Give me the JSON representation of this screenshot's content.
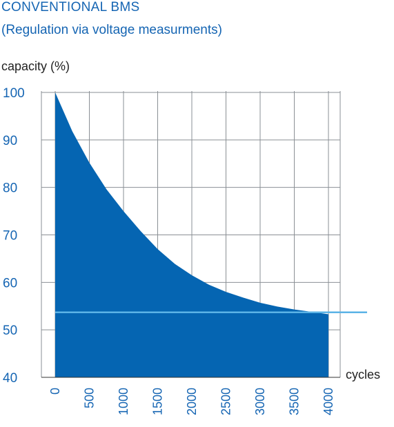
{
  "chart_data": {
    "type": "area",
    "title": "CONVENTIONAL BMS",
    "subtitle": "(Regulation via voltage measurments)",
    "ylabel": "capacity (%)",
    "xlabel": "cycles",
    "x_ticks": [
      "0",
      "500",
      "1000",
      "1500",
      "2000",
      "2500",
      "3000",
      "3500",
      "4000"
    ],
    "y_ticks": [
      "100",
      "90",
      "80",
      "70",
      "60",
      "50",
      "40"
    ],
    "xlim": [
      0,
      4000
    ],
    "ylim": [
      40,
      100
    ],
    "grid": true,
    "series": [
      {
        "x": [
          0,
          250,
          500,
          750,
          1000,
          1250,
          1500,
          1750,
          2000,
          2250,
          2500,
          2750,
          3000,
          3250,
          3500,
          3750,
          4000
        ],
        "values": [
          100,
          91.8,
          85.2,
          79.6,
          75.0,
          70.8,
          67.0,
          63.9,
          61.5,
          59.5,
          58.0,
          56.8,
          55.7,
          54.9,
          54.3,
          53.8,
          53.3
        ],
        "color": "#0565b2"
      }
    ],
    "reference_line": {
      "y": 53.7,
      "color": "#5bb3e6"
    }
  }
}
